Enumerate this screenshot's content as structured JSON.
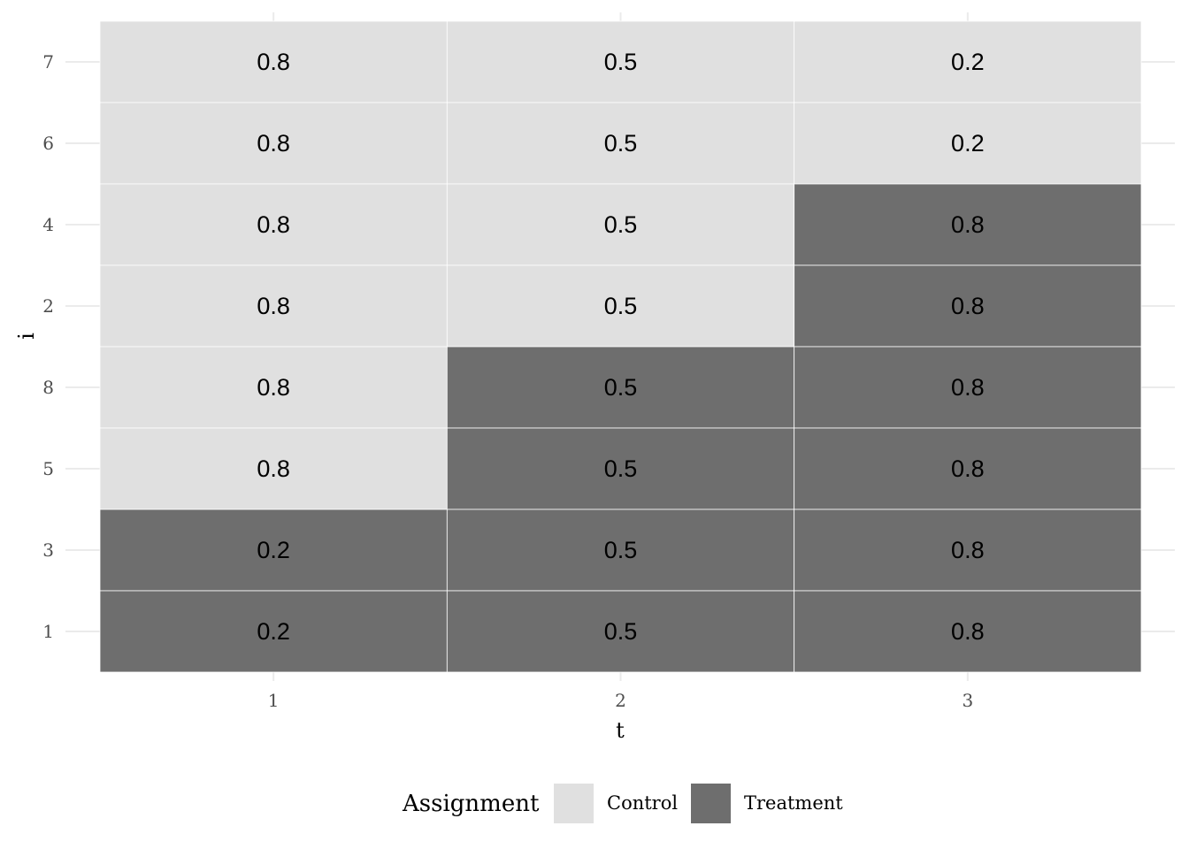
{
  "chart_data": {
    "type": "heatmap",
    "title": "",
    "xlabel": "t",
    "ylabel": "i",
    "x_categories": [
      "1",
      "2",
      "3"
    ],
    "y_categories": [
      "1",
      "3",
      "5",
      "8",
      "2",
      "4",
      "6",
      "7"
    ],
    "cells": [
      {
        "i": "7",
        "t": "1",
        "value": "0.8",
        "assignment": "Control"
      },
      {
        "i": "7",
        "t": "2",
        "value": "0.5",
        "assignment": "Control"
      },
      {
        "i": "7",
        "t": "3",
        "value": "0.2",
        "assignment": "Control"
      },
      {
        "i": "6",
        "t": "1",
        "value": "0.8",
        "assignment": "Control"
      },
      {
        "i": "6",
        "t": "2",
        "value": "0.5",
        "assignment": "Control"
      },
      {
        "i": "6",
        "t": "3",
        "value": "0.2",
        "assignment": "Control"
      },
      {
        "i": "4",
        "t": "1",
        "value": "0.8",
        "assignment": "Control"
      },
      {
        "i": "4",
        "t": "2",
        "value": "0.5",
        "assignment": "Control"
      },
      {
        "i": "4",
        "t": "3",
        "value": "0.8",
        "assignment": "Treatment"
      },
      {
        "i": "2",
        "t": "1",
        "value": "0.8",
        "assignment": "Control"
      },
      {
        "i": "2",
        "t": "2",
        "value": "0.5",
        "assignment": "Control"
      },
      {
        "i": "2",
        "t": "3",
        "value": "0.8",
        "assignment": "Treatment"
      },
      {
        "i": "8",
        "t": "1",
        "value": "0.8",
        "assignment": "Control"
      },
      {
        "i": "8",
        "t": "2",
        "value": "0.5",
        "assignment": "Treatment"
      },
      {
        "i": "8",
        "t": "3",
        "value": "0.8",
        "assignment": "Treatment"
      },
      {
        "i": "5",
        "t": "1",
        "value": "0.8",
        "assignment": "Control"
      },
      {
        "i": "5",
        "t": "2",
        "value": "0.5",
        "assignment": "Treatment"
      },
      {
        "i": "5",
        "t": "3",
        "value": "0.8",
        "assignment": "Treatment"
      },
      {
        "i": "3",
        "t": "1",
        "value": "0.2",
        "assignment": "Treatment"
      },
      {
        "i": "3",
        "t": "2",
        "value": "0.5",
        "assignment": "Treatment"
      },
      {
        "i": "3",
        "t": "3",
        "value": "0.8",
        "assignment": "Treatment"
      },
      {
        "i": "1",
        "t": "1",
        "value": "0.2",
        "assignment": "Treatment"
      },
      {
        "i": "1",
        "t": "2",
        "value": "0.5",
        "assignment": "Treatment"
      },
      {
        "i": "1",
        "t": "3",
        "value": "0.8",
        "assignment": "Treatment"
      }
    ],
    "legend": {
      "title": "Assignment",
      "position": "bottom",
      "entries": [
        {
          "label": "Control",
          "color": "#e0e0e0"
        },
        {
          "label": "Treatment",
          "color": "#6e6e6e"
        }
      ]
    },
    "grid": true,
    "colors": {
      "grid": "#ebebeb",
      "cell_border": "#ffffff"
    }
  }
}
